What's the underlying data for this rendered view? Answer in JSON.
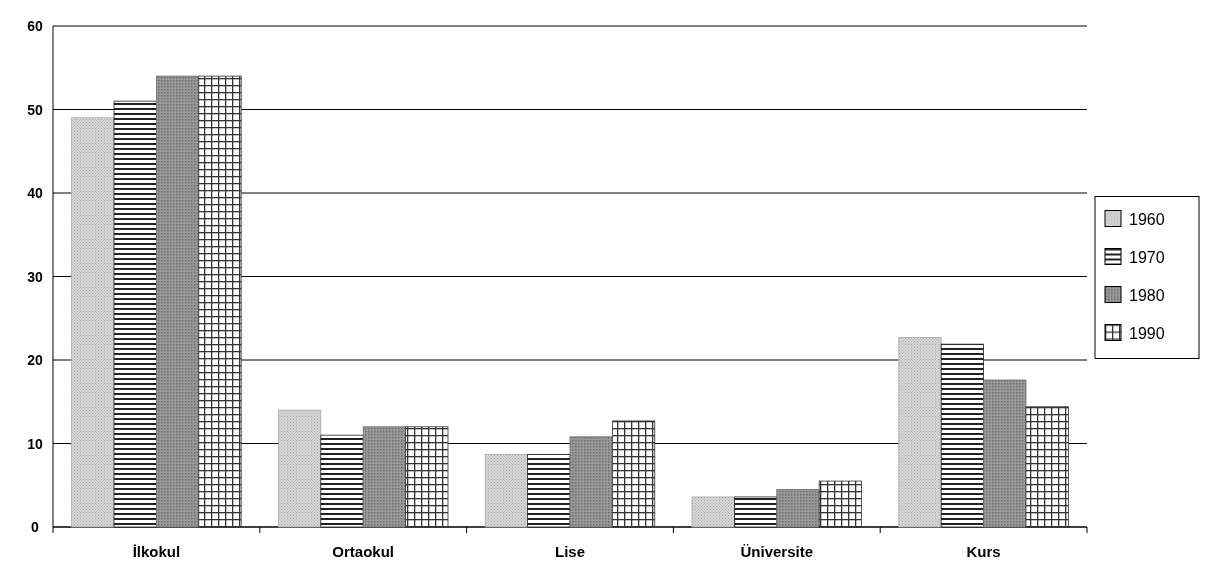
{
  "chart_data": {
    "type": "bar",
    "categories": [
      "İlkokul",
      "Ortaokul",
      "Lise",
      "Üniversite",
      "Kurs"
    ],
    "series": [
      {
        "name": "1960",
        "color": "#a8a8a8",
        "values": [
          49,
          14,
          8.7,
          3.6,
          22.7
        ]
      },
      {
        "name": "1970",
        "color": "#222222",
        "values": [
          51,
          11,
          8.7,
          3.6,
          21.9
        ]
      },
      {
        "name": "1980",
        "color": "#6e6e6e",
        "values": [
          54,
          12,
          10.8,
          4.5,
          17.6
        ]
      },
      {
        "name": "1990",
        "color": "#333333",
        "values": [
          54,
          12,
          12.7,
          5.5,
          14.4
        ]
      }
    ],
    "ylim": [
      0,
      60
    ],
    "yticks": [
      0,
      10,
      20,
      30,
      40,
      50,
      60
    ],
    "grid": "y",
    "legend": "right"
  }
}
